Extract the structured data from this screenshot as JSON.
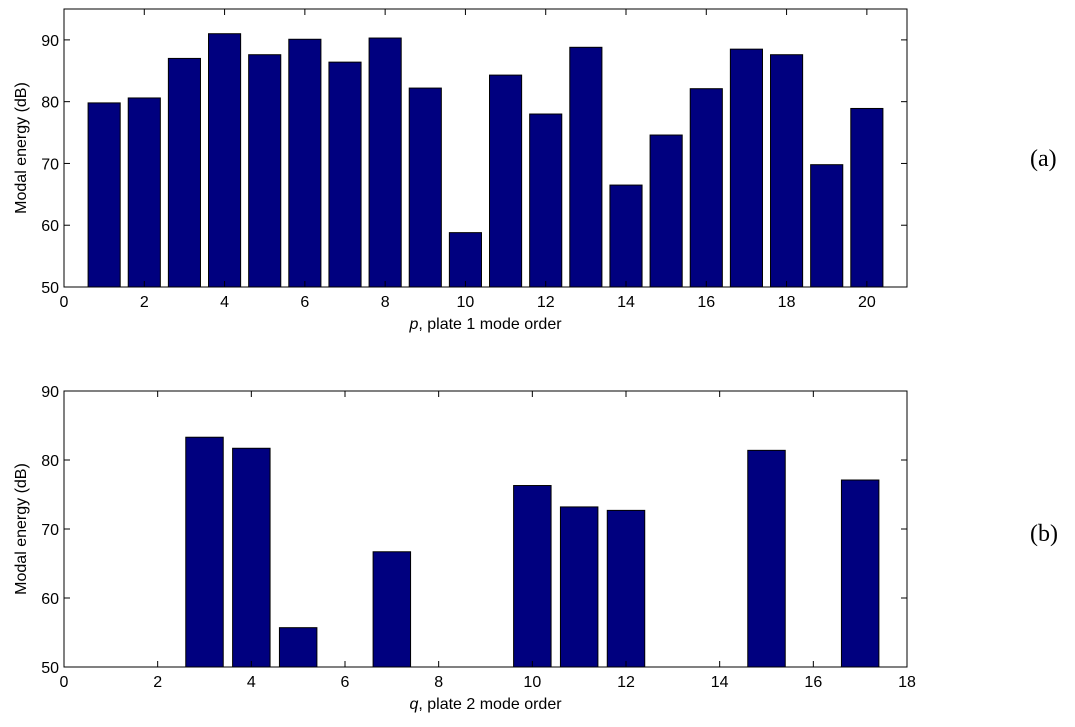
{
  "chart_data": [
    {
      "type": "bar",
      "panel_label": "(a)",
      "x": [
        1,
        2,
        3,
        4,
        5,
        6,
        7,
        8,
        9,
        10,
        11,
        12,
        13,
        14,
        15,
        16,
        17,
        18,
        19,
        20
      ],
      "values": [
        79.8,
        80.6,
        87.0,
        91.0,
        87.6,
        90.1,
        86.4,
        90.3,
        82.2,
        58.8,
        84.3,
        78.0,
        88.8,
        66.5,
        74.6,
        82.1,
        88.5,
        87.6,
        69.8,
        78.9
      ],
      "xlabel_var": "p",
      "xlabel_rest": ", plate 1 mode order",
      "ylabel": "Modal energy (dB)",
      "xlim": [
        0,
        21
      ],
      "ylim": [
        50,
        95
      ],
      "xticks": [
        0,
        2,
        4,
        6,
        8,
        10,
        12,
        14,
        16,
        18,
        20
      ],
      "yticks": [
        50,
        60,
        70,
        80,
        90
      ],
      "bar_color": "#00007f",
      "grid": false
    },
    {
      "type": "bar",
      "panel_label": "(b)",
      "x": [
        3,
        4,
        5,
        7,
        10,
        11,
        12,
        15,
        17
      ],
      "values": [
        83.3,
        81.7,
        55.7,
        66.7,
        76.3,
        73.2,
        72.7,
        81.4,
        77.1
      ],
      "xlabel_var": "q",
      "xlabel_rest": ", plate 2 mode order",
      "ylabel": "Modal energy (dB)",
      "xlim": [
        0,
        18
      ],
      "ylim": [
        50,
        90
      ],
      "xticks": [
        0,
        2,
        4,
        6,
        8,
        10,
        12,
        14,
        16,
        18
      ],
      "yticks": [
        50,
        60,
        70,
        80,
        90
      ],
      "bar_color": "#00007f",
      "grid": false
    }
  ]
}
